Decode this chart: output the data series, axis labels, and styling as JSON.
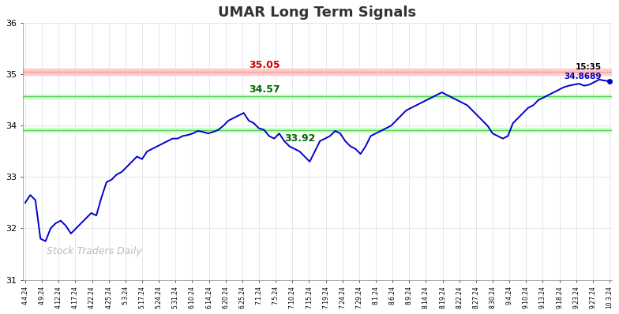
{
  "title": "UMAR Long Term Signals",
  "title_color": "#333333",
  "title_fontsize": 13,
  "background_color": "#ffffff",
  "line_color": "#0000cc",
  "line_width": 1.4,
  "ylim": [
    31,
    36
  ],
  "yticks": [
    31,
    32,
    33,
    34,
    35,
    36
  ],
  "hline_red": 35.05,
  "hline_green_upper": 34.57,
  "hline_green_lower": 33.92,
  "hline_red_fill_color": "#ffcccc",
  "hline_red_line_color": "#ff9999",
  "hline_green_upper_fill_color": "#ccffcc",
  "hline_green_upper_line_color": "#55cc55",
  "hline_green_lower_fill_color": "#ccffcc",
  "hline_green_lower_line_color": "#55cc55",
  "annotation_red_text": "35.05",
  "annotation_red_color": "#cc0000",
  "annotation_green_upper_text": "34.57",
  "annotation_green_upper_color": "#006600",
  "annotation_green_lower_text": "33.92",
  "annotation_green_lower_color": "#006600",
  "last_time_text": "15:35",
  "last_price_text": "34.8689",
  "last_price_color": "#0000cc",
  "last_time_color": "#000000",
  "watermark_text": "Stock Traders Daily",
  "watermark_color": "#bbbbbb",
  "grid_color": "#dddddd",
  "xtick_labels": [
    "4.4.24",
    "4.9.24",
    "4.12.24",
    "4.17.24",
    "4.22.24",
    "4.25.24",
    "5.3.24",
    "5.17.24",
    "5.24.24",
    "5.31.24",
    "6.10.24",
    "6.14.24",
    "6.20.24",
    "6.25.24",
    "7.1.24",
    "7.5.24",
    "7.10.24",
    "7.15.24",
    "7.19.24",
    "7.24.24",
    "7.29.24",
    "8.1.24",
    "8.6.24",
    "8.9.24",
    "8.14.24",
    "8.19.24",
    "8.22.24",
    "8.27.24",
    "8.30.24",
    "9.4.24",
    "9.10.24",
    "9.13.24",
    "9.18.24",
    "9.23.24",
    "9.27.24",
    "10.3.24"
  ],
  "prices": [
    32.5,
    32.65,
    32.55,
    31.8,
    31.75,
    32.0,
    32.1,
    32.15,
    32.05,
    31.9,
    32.0,
    32.1,
    32.2,
    32.3,
    32.25,
    32.6,
    32.9,
    32.95,
    33.05,
    33.1,
    33.2,
    33.3,
    33.4,
    33.35,
    33.5,
    33.55,
    33.6,
    33.65,
    33.7,
    33.75,
    33.75,
    33.8,
    33.82,
    33.85,
    33.9,
    33.88,
    33.85,
    33.88,
    33.92,
    34.0,
    34.1,
    34.15,
    34.2,
    34.25,
    34.1,
    34.05,
    33.95,
    33.92,
    33.8,
    33.75,
    33.85,
    33.7,
    33.6,
    33.55,
    33.5,
    33.4,
    33.3,
    33.5,
    33.7,
    33.75,
    33.8,
    33.9,
    33.85,
    33.7,
    33.6,
    33.55,
    33.45,
    33.6,
    33.8,
    33.85,
    33.9,
    33.95,
    34.0,
    34.1,
    34.2,
    34.3,
    34.35,
    34.4,
    34.45,
    34.5,
    34.55,
    34.6,
    34.65,
    34.6,
    34.55,
    34.5,
    34.45,
    34.4,
    34.3,
    34.2,
    34.1,
    34.0,
    33.85,
    33.8,
    33.75,
    33.8,
    34.05,
    34.15,
    34.25,
    34.35,
    34.4,
    34.5,
    34.55,
    34.6,
    34.65,
    34.7,
    34.75,
    34.78,
    34.8,
    34.82,
    34.78,
    34.8,
    34.85,
    34.9,
    34.88,
    34.87
  ]
}
